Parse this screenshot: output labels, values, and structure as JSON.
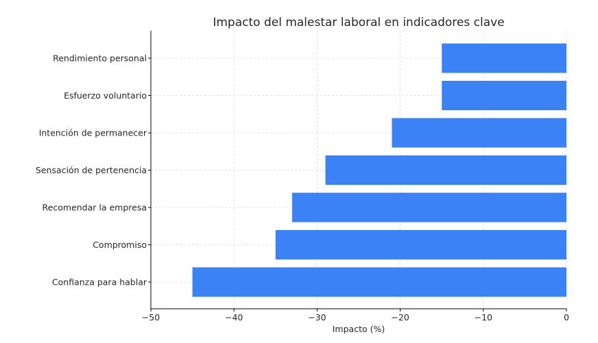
{
  "chart_data": {
    "type": "bar",
    "orientation": "horizontal",
    "title": "Impacto del malestar laboral en indicadores clave",
    "xlabel": "Impacto (%)",
    "ylabel": "",
    "categories": [
      "Rendimiento personal",
      "Esfuerzo voluntario",
      "Intención de permanecer",
      "Sensación de pertenencia",
      "Recomendar la empresa",
      "Compromiso",
      "Confianza para hablar"
    ],
    "values": [
      -15,
      -15,
      -21,
      -29,
      -33,
      -35,
      -45
    ],
    "xlim": [
      -50,
      0
    ],
    "xticks": [
      -50,
      -40,
      -30,
      -20,
      -10,
      0
    ],
    "xtick_labels": [
      "−50",
      "−40",
      "−30",
      "−20",
      "−10",
      "0"
    ],
    "grid": true,
    "bar_color": "#3b82f6"
  }
}
